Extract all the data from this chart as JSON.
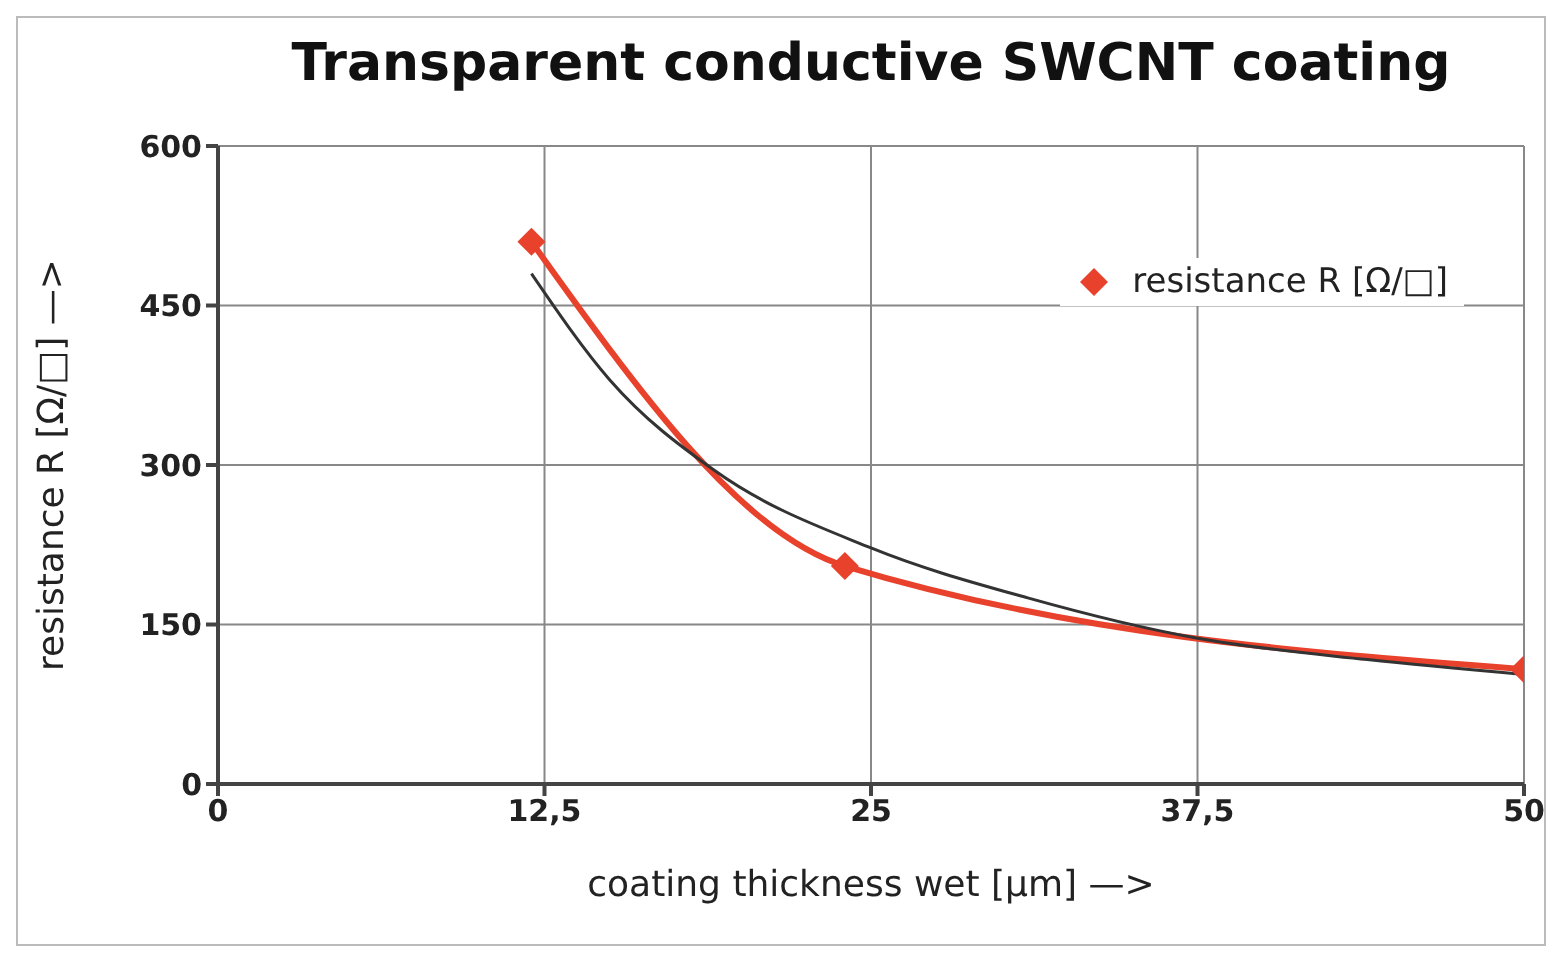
{
  "chart_data": {
    "type": "line",
    "title": "Transparent conductive SWCNT coating",
    "xlabel": "coating thickness wet [µm] —>",
    "ylabel": "resistance R [Ω/□] —>",
    "xlim": [
      0,
      50
    ],
    "xticks": [
      0,
      {
        "value": 12.5,
        "label": "12,5"
      },
      25,
      {
        "value": 37.5,
        "label": "37,5"
      },
      50
    ],
    "ylim": [
      0,
      600
    ],
    "yticks": [
      0,
      150,
      300,
      450,
      600
    ],
    "grid": true,
    "legend": "top right",
    "series": [
      {
        "name": "resistance R [Ω/□]",
        "color": "#e8412c",
        "x": [
          12,
          24,
          50
        ],
        "values": [
          510,
          205,
          108
        ],
        "marker": "diamond",
        "line_style": "solid"
      },
      {
        "type": "line",
        "color": "#333333",
        "x": [
          12,
          15,
          19,
          25,
          31,
          37.5,
          44,
          50
        ],
        "values": [
          480,
          380,
          295,
          222,
          175,
          137,
          117,
          103
        ],
        "marker": "none",
        "line_style": "solid"
      }
    ]
  }
}
